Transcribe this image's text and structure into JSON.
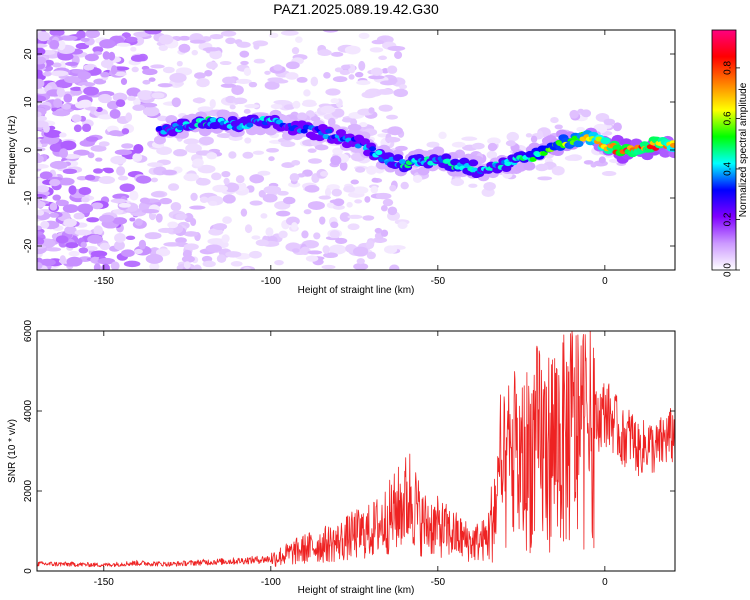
{
  "figure": {
    "title": "PAZ1.2025.089.19.42.G30"
  },
  "chart_data": [
    {
      "type": "heatmap",
      "xlabel": "Height of straight line (km)",
      "ylabel": "Frequency (Hz)",
      "xlim": [
        -170,
        21
      ],
      "ylim": [
        -25,
        25
      ],
      "xticks": [
        -150,
        -100,
        -50,
        0
      ],
      "yticks": [
        -20,
        -10,
        0,
        10,
        20
      ],
      "zlim": [
        0,
        0.95
      ],
      "colorbar": {
        "label": "Normalized spectral amplitude",
        "ticks": [
          "0.0",
          "0.2",
          "0.4",
          "0.6",
          "0.8"
        ],
        "tick_values": [
          0,
          0.2,
          0.4,
          0.6,
          0.8
        ],
        "colormap": [
          "#ffffff",
          "#cc99ff",
          "#8000ff",
          "#0000ff",
          "#00ffff",
          "#00ff00",
          "#ffff00",
          "#ff8000",
          "#ff0000",
          "#ff0080"
        ]
      },
      "ridge": {
        "x": [
          -133,
          -125,
          -118,
          -110,
          -102,
          -95,
          -88,
          -80,
          -72,
          -65,
          -58,
          -50,
          -45,
          -38,
          -30,
          -25,
          -20,
          -15,
          -10,
          -5,
          0,
          5,
          10,
          15,
          21
        ],
        "frequency": [
          4,
          5,
          6,
          5,
          6,
          5,
          4,
          3,
          1,
          -2,
          -3,
          -2,
          -3,
          -4,
          -3,
          -2,
          -1,
          1,
          2,
          3,
          1,
          0,
          0,
          1,
          1
        ],
        "amplitude": [
          0.4,
          0.45,
          0.5,
          0.45,
          0.45,
          0.4,
          0.4,
          0.4,
          0.4,
          0.45,
          0.5,
          0.45,
          0.5,
          0.45,
          0.45,
          0.5,
          0.55,
          0.6,
          0.65,
          0.7,
          0.8,
          0.95,
          0.85,
          0.9,
          0.75
        ]
      }
    },
    {
      "type": "line",
      "xlabel": "Height of straight line (km)",
      "ylabel": "SNR (10 * v/v)",
      "xlim": [
        -170,
        21
      ],
      "ylim": [
        0,
        6000
      ],
      "xticks": [
        -150,
        -100,
        -50,
        0
      ],
      "yticks": [
        0,
        2000,
        4000,
        6000
      ],
      "series": [
        {
          "color": "#ee2222",
          "x": [
            -170,
            -160,
            -150,
            -140,
            -130,
            -120,
            -110,
            -100,
            -95,
            -90,
            -85,
            -80,
            -75,
            -70,
            -65,
            -60,
            -58,
            -55,
            -50,
            -45,
            -40,
            -35,
            -33,
            -30,
            -28,
            -25,
            -22,
            -20,
            -17,
            -15,
            -12,
            -10,
            -8,
            -5,
            -3,
            0,
            3,
            5,
            8,
            10,
            13,
            15,
            18,
            21
          ],
          "y": [
            180,
            170,
            150,
            200,
            170,
            220,
            250,
            300,
            420,
            550,
            650,
            720,
            900,
            1000,
            1300,
            1700,
            1900,
            1200,
            1100,
            900,
            700,
            800,
            1600,
            2400,
            2800,
            2600,
            3000,
            3100,
            3000,
            3300,
            3200,
            3500,
            3400,
            3600,
            3700,
            4000,
            3700,
            3300,
            3400,
            3000,
            3200,
            3000,
            3300,
            3400
          ]
        }
      ]
    }
  ]
}
